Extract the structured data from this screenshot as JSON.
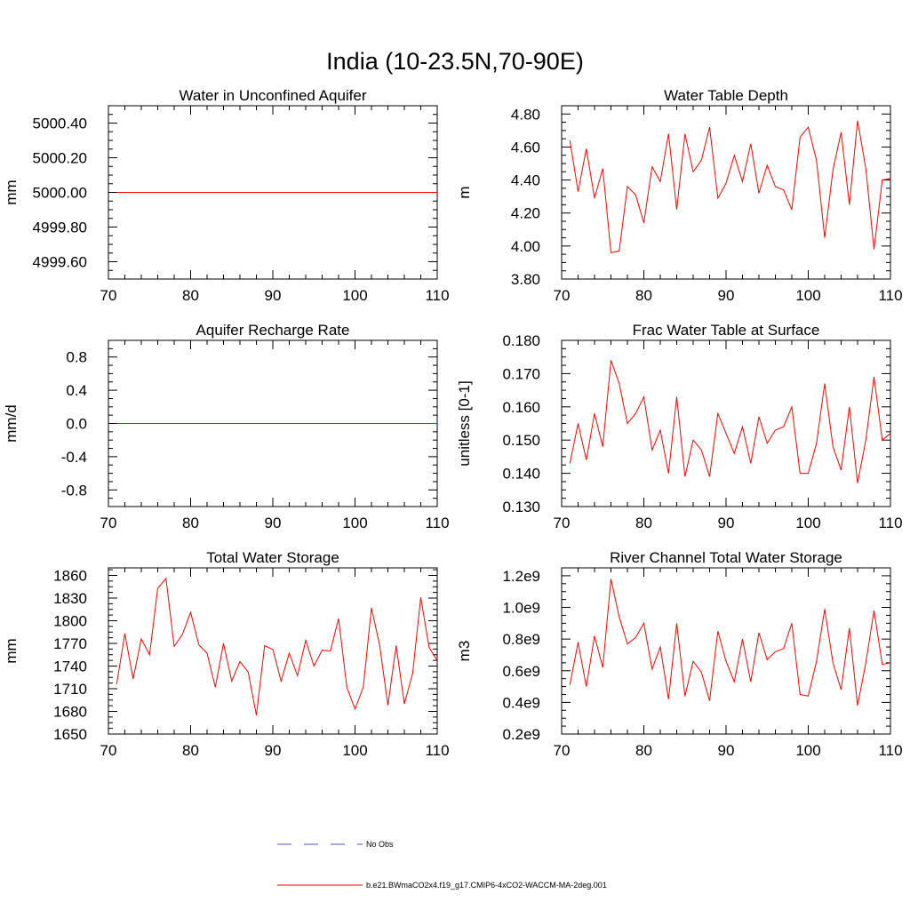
{
  "figure_title": "India (10-23.5N,70-90E)",
  "legend": {
    "entries": [
      {
        "label": "No Obs",
        "color": "#4d5fb3",
        "style": "dashed"
      },
      {
        "label": "b.e21.BWmaCO2x4.f19_g17.CMIP6-4xCO2-WACCM-MA-2deg.001",
        "color": "#ff0000",
        "style": "solid"
      }
    ]
  },
  "chart_data": [
    {
      "type": "line",
      "title": "Water in Unconfined Aquifer",
      "ylabel": "mm",
      "xlim": [
        70,
        110
      ],
      "ylim": [
        4999.5,
        5000.5
      ],
      "xticks": [
        70,
        80,
        90,
        100,
        110
      ],
      "xtick_labels": [
        "70",
        "80",
        "90",
        "100",
        "110"
      ],
      "yticks": [
        4999.6,
        4999.8,
        5000.0,
        5000.2,
        5000.4
      ],
      "ytick_labels": [
        "4999.60",
        "4999.80",
        "5000.00",
        "5000.20",
        "5000.40"
      ],
      "x": [
        71,
        110
      ],
      "series": [
        {
          "name": "b.e21.BWmaCO2x4.f19_g17.CMIP6-4xCO2-WACCM-MA-2deg.001",
          "color": "#ff0000",
          "values": [
            5000.0,
            5000.0
          ]
        }
      ]
    },
    {
      "type": "line",
      "title": "Water Table Depth",
      "ylabel": "m",
      "xlim": [
        70,
        110
      ],
      "ylim": [
        3.8,
        4.85
      ],
      "xticks": [
        70,
        80,
        90,
        100,
        110
      ],
      "xtick_labels": [
        "70",
        "80",
        "90",
        "100",
        "110"
      ],
      "yticks": [
        3.8,
        4.0,
        4.2,
        4.4,
        4.6,
        4.8
      ],
      "ytick_labels": [
        "3.80",
        "4.00",
        "4.20",
        "4.40",
        "4.60",
        "4.80"
      ],
      "x": [
        71,
        72,
        73,
        74,
        75,
        76,
        77,
        78,
        79,
        80,
        81,
        82,
        83,
        84,
        85,
        86,
        87,
        88,
        89,
        90,
        91,
        92,
        93,
        94,
        95,
        96,
        97,
        98,
        99,
        100,
        101,
        102,
        103,
        104,
        105,
        106,
        107,
        108,
        109,
        110
      ],
      "series": [
        {
          "name": "b.e21.BWmaCO2x4.f19_g17.CMIP6-4xCO2-WACCM-MA-2deg.001",
          "color": "#ff0000",
          "values": [
            4.64,
            4.33,
            4.59,
            4.29,
            4.47,
            3.96,
            3.97,
            4.36,
            4.31,
            4.14,
            4.48,
            4.39,
            4.68,
            4.22,
            4.68,
            4.45,
            4.52,
            4.72,
            4.29,
            4.38,
            4.55,
            4.39,
            4.62,
            4.32,
            4.49,
            4.36,
            4.34,
            4.22,
            4.66,
            4.72,
            4.52,
            4.05,
            4.46,
            4.69,
            4.25,
            4.76,
            4.47,
            3.98,
            4.4,
            4.41
          ]
        }
      ]
    },
    {
      "type": "line",
      "title": "Aquifer Recharge Rate",
      "ylabel": "mm/d",
      "xlim": [
        70,
        110
      ],
      "ylim": [
        -1.0,
        1.0
      ],
      "xticks": [
        70,
        80,
        90,
        100,
        110
      ],
      "xtick_labels": [
        "70",
        "80",
        "90",
        "100",
        "110"
      ],
      "yticks": [
        -0.8,
        -0.4,
        0.0,
        0.4,
        0.8
      ],
      "ytick_labels": [
        "-0.8",
        "-0.4",
        "0.0",
        "0.4",
        "0.8"
      ],
      "x": [
        71,
        110
      ],
      "series": [
        {
          "name": "b.e21.BWmaCO2x4.f19_g17.CMIP6-4xCO2-WACCM-MA-2deg.001",
          "color": "#ff0000",
          "values": [
            0.0,
            0.0
          ]
        }
      ]
    },
    {
      "type": "line",
      "title": "Frac Water Table at Surface",
      "ylabel": "unitless [0-1]",
      "xlim": [
        70,
        110
      ],
      "ylim": [
        0.13,
        0.18
      ],
      "xticks": [
        70,
        80,
        90,
        100,
        110
      ],
      "xtick_labels": [
        "70",
        "80",
        "90",
        "100",
        "110"
      ],
      "yticks": [
        0.13,
        0.14,
        0.15,
        0.16,
        0.17,
        0.18
      ],
      "ytick_labels": [
        "0.130",
        "0.140",
        "0.150",
        "0.160",
        "0.170",
        "0.180"
      ],
      "x": [
        71,
        72,
        73,
        74,
        75,
        76,
        77,
        78,
        79,
        80,
        81,
        82,
        83,
        84,
        85,
        86,
        87,
        88,
        89,
        90,
        91,
        92,
        93,
        94,
        95,
        96,
        97,
        98,
        99,
        100,
        101,
        102,
        103,
        104,
        105,
        106,
        107,
        108,
        109,
        110
      ],
      "series": [
        {
          "name": "b.e21.BWmaCO2x4.f19_g17.CMIP6-4xCO2-WACCM-MA-2deg.001",
          "color": "#ff0000",
          "values": [
            0.143,
            0.155,
            0.144,
            0.158,
            0.148,
            0.174,
            0.167,
            0.155,
            0.158,
            0.163,
            0.147,
            0.153,
            0.14,
            0.163,
            0.139,
            0.15,
            0.147,
            0.139,
            0.158,
            0.152,
            0.146,
            0.154,
            0.143,
            0.157,
            0.149,
            0.153,
            0.154,
            0.16,
            0.14,
            0.14,
            0.149,
            0.167,
            0.148,
            0.141,
            0.16,
            0.137,
            0.15,
            0.169,
            0.15,
            0.152
          ]
        }
      ]
    },
    {
      "type": "line",
      "title": "Total Water Storage",
      "ylabel": "mm",
      "xlim": [
        70,
        110
      ],
      "ylim": [
        1650,
        1870
      ],
      "xticks": [
        70,
        80,
        90,
        100,
        110
      ],
      "xtick_labels": [
        "70",
        "80",
        "90",
        "100",
        "110"
      ],
      "yticks": [
        1650,
        1680,
        1710,
        1740,
        1770,
        1800,
        1830,
        1860
      ],
      "ytick_labels": [
        "1650",
        "1680",
        "1710",
        "1740",
        "1770",
        "1800",
        "1830",
        "1860"
      ],
      "x": [
        71,
        72,
        73,
        74,
        75,
        76,
        77,
        78,
        79,
        80,
        81,
        82,
        83,
        84,
        85,
        86,
        87,
        88,
        89,
        90,
        91,
        92,
        93,
        94,
        95,
        96,
        97,
        98,
        99,
        100,
        101,
        102,
        103,
        104,
        105,
        106,
        107,
        108,
        109,
        110
      ],
      "series": [
        {
          "name": "b.e21.BWmaCO2x4.f19_g17.CMIP6-4xCO2-WACCM-MA-2deg.001",
          "color": "#ff0000",
          "values": [
            1716,
            1783,
            1723,
            1776,
            1755,
            1843,
            1856,
            1766,
            1782,
            1811,
            1768,
            1757,
            1712,
            1770,
            1720,
            1746,
            1732,
            1675,
            1767,
            1762,
            1720,
            1757,
            1727,
            1774,
            1740,
            1761,
            1760,
            1803,
            1712,
            1683,
            1712,
            1817,
            1767,
            1688,
            1767,
            1690,
            1730,
            1831,
            1765,
            1747
          ]
        }
      ]
    },
    {
      "type": "line",
      "title": "River Channel Total Water Storage",
      "ylabel": "m3",
      "xlim": [
        70,
        110
      ],
      "ylim": [
        0.2,
        1.25
      ],
      "yunit": "1e9",
      "xticks": [
        70,
        80,
        90,
        100,
        110
      ],
      "xtick_labels": [
        "70",
        "80",
        "90",
        "100",
        "110"
      ],
      "yticks": [
        0.2,
        0.4,
        0.6,
        0.8,
        1.0,
        1.2
      ],
      "ytick_labels": [
        "0.2e9",
        "0.4e9",
        "0.6e9",
        "0.8e9",
        "1.0e9",
        "1.2e9"
      ],
      "x": [
        71,
        72,
        73,
        74,
        75,
        76,
        77,
        78,
        79,
        80,
        81,
        82,
        83,
        84,
        85,
        86,
        87,
        88,
        89,
        90,
        91,
        92,
        93,
        94,
        95,
        96,
        97,
        98,
        99,
        100,
        101,
        102,
        103,
        104,
        105,
        106,
        107,
        108,
        109,
        110
      ],
      "series": [
        {
          "name": "b.e21.BWmaCO2x4.f19_g17.CMIP6-4xCO2-WACCM-MA-2deg.001",
          "color": "#ff0000",
          "values": [
            0.51,
            0.78,
            0.5,
            0.82,
            0.62,
            1.18,
            0.94,
            0.77,
            0.81,
            0.9,
            0.61,
            0.75,
            0.42,
            0.9,
            0.44,
            0.66,
            0.59,
            0.41,
            0.85,
            0.66,
            0.53,
            0.8,
            0.53,
            0.84,
            0.67,
            0.72,
            0.74,
            0.9,
            0.45,
            0.44,
            0.66,
            0.99,
            0.65,
            0.48,
            0.87,
            0.38,
            0.65,
            0.98,
            0.64,
            0.65
          ]
        }
      ]
    }
  ]
}
